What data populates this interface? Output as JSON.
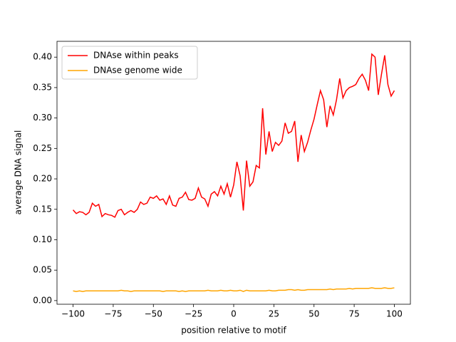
{
  "chart_data": {
    "type": "line",
    "xlabel": "position relative to motif",
    "ylabel": "average DNA signal",
    "x": [
      -100,
      -98,
      -96,
      -94,
      -92,
      -90,
      -88,
      -86,
      -84,
      -82,
      -80,
      -78,
      -76,
      -74,
      -72,
      -70,
      -68,
      -66,
      -64,
      -62,
      -60,
      -58,
      -56,
      -54,
      -52,
      -50,
      -48,
      -46,
      -44,
      -42,
      -40,
      -38,
      -36,
      -34,
      -32,
      -30,
      -28,
      -26,
      -24,
      -22,
      -20,
      -18,
      -16,
      -14,
      -12,
      -10,
      -8,
      -6,
      -4,
      -2,
      0,
      2,
      4,
      6,
      8,
      10,
      12,
      14,
      16,
      18,
      20,
      22,
      24,
      26,
      28,
      30,
      32,
      34,
      36,
      38,
      40,
      42,
      44,
      46,
      48,
      50,
      52,
      54,
      56,
      58,
      60,
      62,
      64,
      66,
      68,
      70,
      72,
      74,
      76,
      78,
      80,
      82,
      84,
      86,
      88,
      90,
      92,
      94,
      96,
      98,
      100
    ],
    "series": [
      {
        "name": "DNAse within peaks",
        "color": "#ff0000",
        "values": [
          0.149,
          0.143,
          0.146,
          0.145,
          0.141,
          0.145,
          0.16,
          0.155,
          0.158,
          0.138,
          0.143,
          0.141,
          0.14,
          0.137,
          0.148,
          0.15,
          0.141,
          0.145,
          0.148,
          0.145,
          0.15,
          0.162,
          0.158,
          0.16,
          0.17,
          0.168,
          0.172,
          0.165,
          0.167,
          0.158,
          0.172,
          0.157,
          0.155,
          0.168,
          0.17,
          0.178,
          0.166,
          0.165,
          0.168,
          0.185,
          0.17,
          0.167,
          0.155,
          0.175,
          0.179,
          0.172,
          0.188,
          0.175,
          0.192,
          0.17,
          0.19,
          0.228,
          0.205,
          0.148,
          0.23,
          0.188,
          0.195,
          0.222,
          0.218,
          0.316,
          0.24,
          0.278,
          0.245,
          0.26,
          0.255,
          0.262,
          0.292,
          0.275,
          0.278,
          0.295,
          0.228,
          0.272,
          0.245,
          0.26,
          0.28,
          0.298,
          0.322,
          0.345,
          0.33,
          0.285,
          0.32,
          0.305,
          0.33,
          0.365,
          0.333,
          0.345,
          0.35,
          0.352,
          0.355,
          0.365,
          0.372,
          0.362,
          0.345,
          0.405,
          0.4,
          0.338,
          0.372,
          0.403,
          0.355,
          0.336,
          0.345
        ]
      },
      {
        "name": "DNAse genome wide",
        "color": "#ffa500",
        "values": [
          0.016,
          0.015,
          0.016,
          0.015,
          0.016,
          0.016,
          0.016,
          0.016,
          0.016,
          0.016,
          0.016,
          0.016,
          0.016,
          0.016,
          0.016,
          0.017,
          0.016,
          0.016,
          0.015,
          0.016,
          0.016,
          0.016,
          0.016,
          0.016,
          0.016,
          0.016,
          0.016,
          0.016,
          0.015,
          0.016,
          0.016,
          0.016,
          0.016,
          0.015,
          0.016,
          0.015,
          0.016,
          0.016,
          0.016,
          0.016,
          0.016,
          0.016,
          0.017,
          0.016,
          0.016,
          0.016,
          0.017,
          0.016,
          0.016,
          0.017,
          0.016,
          0.016,
          0.017,
          0.015,
          0.017,
          0.016,
          0.016,
          0.016,
          0.016,
          0.016,
          0.016,
          0.017,
          0.016,
          0.016,
          0.017,
          0.017,
          0.017,
          0.018,
          0.018,
          0.017,
          0.018,
          0.017,
          0.017,
          0.018,
          0.018,
          0.018,
          0.018,
          0.018,
          0.018,
          0.018,
          0.019,
          0.018,
          0.019,
          0.019,
          0.019,
          0.019,
          0.02,
          0.019,
          0.02,
          0.02,
          0.02,
          0.02,
          0.02,
          0.021,
          0.02,
          0.02,
          0.02,
          0.021,
          0.02,
          0.02,
          0.021
        ]
      }
    ],
    "xlim": [
      -110,
      110
    ],
    "ylim": [
      -0.006,
      0.426
    ],
    "xticks": [
      {
        "value": -100,
        "label": "−100"
      },
      {
        "value": -75,
        "label": "−75"
      },
      {
        "value": -50,
        "label": "−50"
      },
      {
        "value": -25,
        "label": "−25"
      },
      0,
      25,
      50,
      75,
      100
    ],
    "yticks": [
      {
        "value": 0,
        "label": "0.00"
      },
      0.05,
      {
        "value": 0.1,
        "label": "0.10"
      },
      0.15,
      {
        "value": 0.2,
        "label": "0.20"
      },
      0.25,
      {
        "value": 0.3,
        "label": "0.30"
      },
      0.35,
      {
        "value": 0.4,
        "label": "0.40"
      }
    ],
    "legend": "upper left",
    "grid": false
  }
}
